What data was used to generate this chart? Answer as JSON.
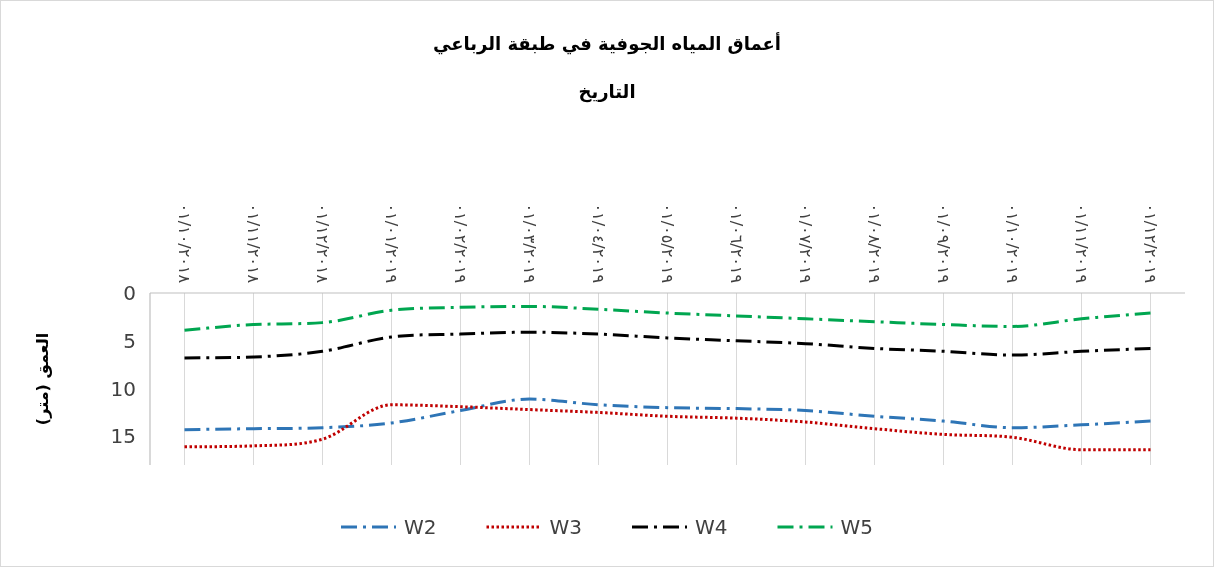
{
  "chart_data": {
    "type": "line",
    "title": "أعماق المياه الجوفية في طبقة الرباعي",
    "annotations": [
      "التاريخ"
    ],
    "ylabel": "العمق (متر)",
    "categories": [
      "٠١/١٠/٢٠١٨",
      "٠١/١١/٢٠١٨",
      "٠١/١٢/٢٠١٨",
      "٠١/٠١/٢٠١٩",
      "٠١/٠٢/٢٠١٩",
      "٠١/٠٣/٢٠١٩",
      "٠١/٠٤/٢٠١٩",
      "٠١/٠٥/٢٠١٩",
      "٠١/٠٦/٢٠١٩",
      "٠١/٠٧/٢٠١٩",
      "٠١/٠٨/٢٠١٩",
      "٠١/٠٩/٢٠١٩",
      "٠١/١٠/٢٠١٩",
      "٠١/١١/٢٠١٩",
      "٠١/١٢/٢٠١٩"
    ],
    "series": [
      {
        "name": "W2",
        "color": "#2e75b6",
        "line_style": "dashed",
        "values": [
          14.3,
          14.2,
          14.1,
          13.6,
          12.3,
          11.1,
          11.7,
          12.0,
          12.1,
          12.3,
          12.9,
          13.4,
          14.1,
          13.8,
          13.4
        ]
      },
      {
        "name": "W3",
        "color": "#c00000",
        "line_style": "dotted",
        "values": [
          16.1,
          16.0,
          15.3,
          11.7,
          11.9,
          12.2,
          12.5,
          12.9,
          13.1,
          13.5,
          14.2,
          14.8,
          15.1,
          16.4,
          16.4
        ]
      },
      {
        "name": "W4",
        "color": "#000000",
        "line_style": "dashed",
        "values": [
          6.8,
          6.7,
          6.1,
          4.6,
          4.3,
          4.1,
          4.3,
          4.7,
          5.0,
          5.3,
          5.8,
          6.1,
          6.5,
          6.1,
          5.8
        ]
      },
      {
        "name": "W5",
        "color": "#00a650",
        "line_style": "dashed",
        "values": [
          3.9,
          3.3,
          3.1,
          1.8,
          1.5,
          1.4,
          1.7,
          2.1,
          2.4,
          2.7,
          3.0,
          3.3,
          3.5,
          2.7,
          2.1
        ]
      }
    ],
    "ylim": [
      18,
      0
    ],
    "yticks": [
      0,
      5,
      10,
      15
    ],
    "grid": "x",
    "legend": "bottom",
    "marker": "none"
  }
}
